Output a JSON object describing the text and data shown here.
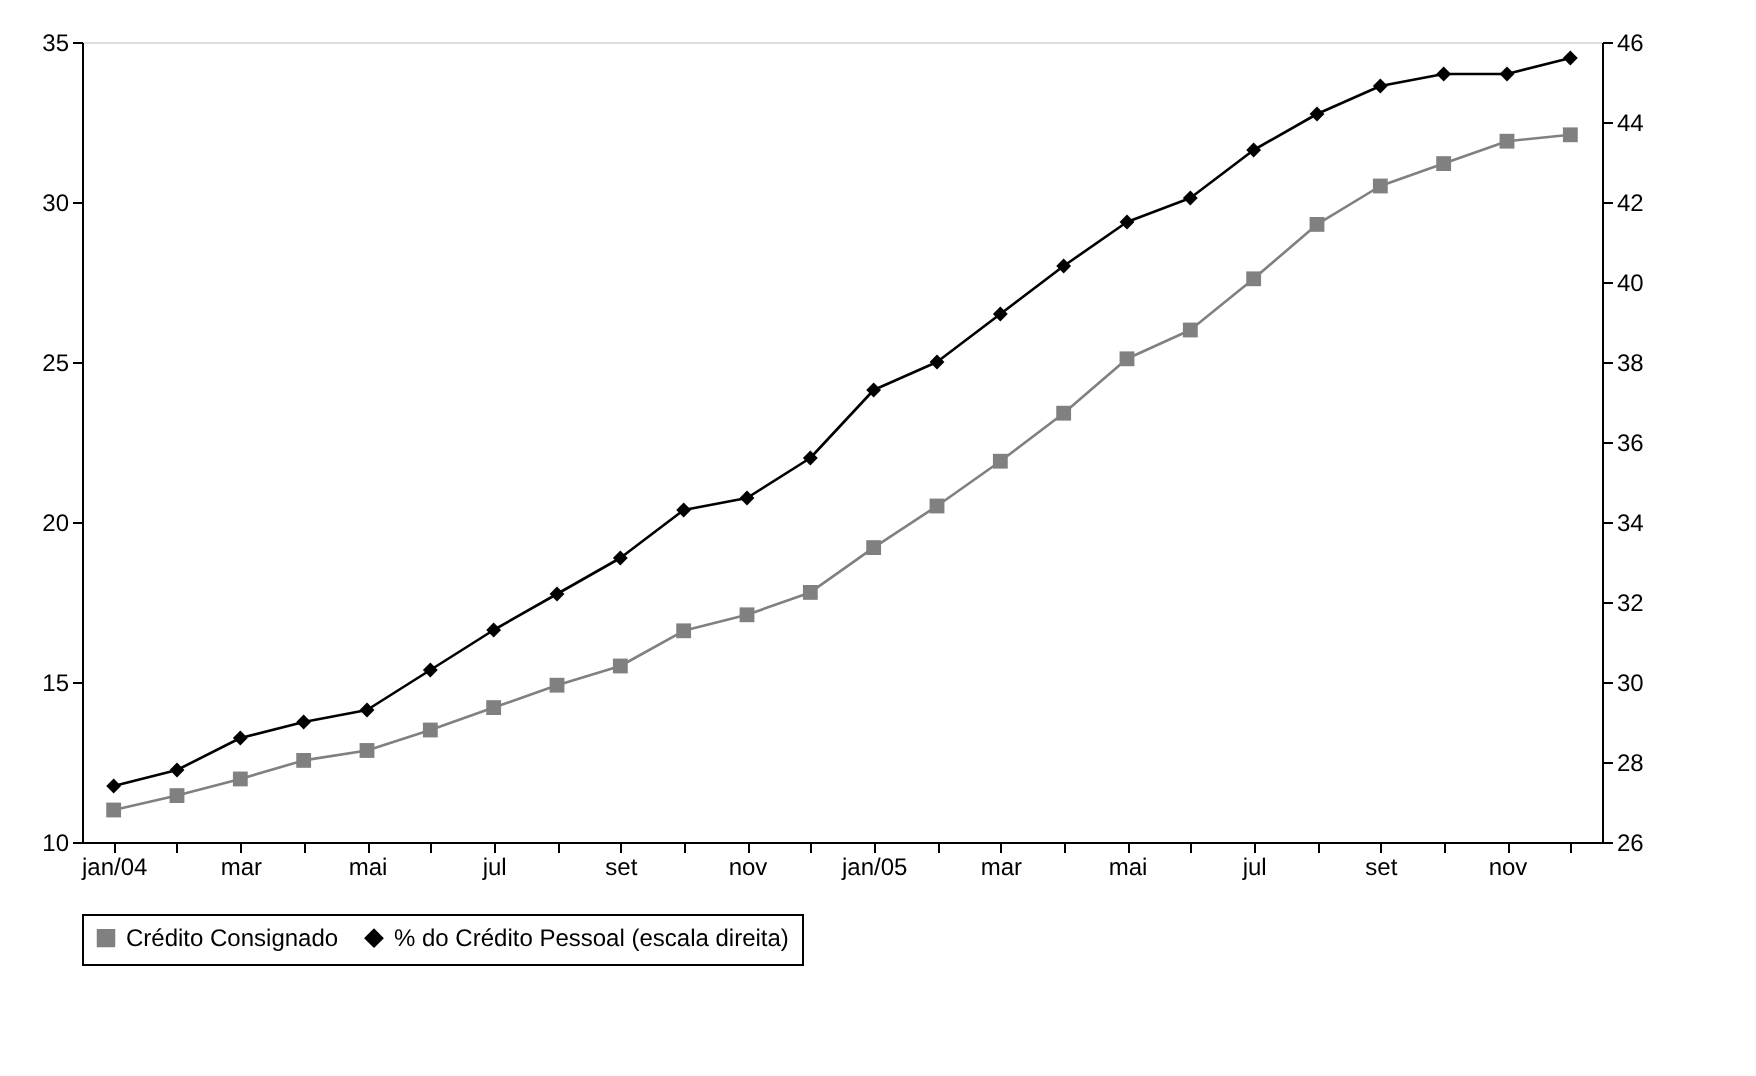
{
  "chart_data": {
    "type": "line",
    "categories": [
      "jan/04",
      null,
      "mar",
      null,
      "mai",
      null,
      "jul",
      null,
      "set",
      null,
      "nov",
      null,
      "jan/05",
      null,
      "mar",
      null,
      "mai",
      null,
      "jul",
      null,
      "set",
      null,
      "nov",
      null
    ],
    "series": [
      {
        "name": "Crédito Consignado",
        "color": "#808080",
        "marker": "square",
        "values": [
          11.0,
          11.45,
          11.97,
          12.55,
          12.86,
          13.5,
          14.2,
          14.9,
          15.5,
          16.6,
          17.1,
          17.8,
          19.2,
          20.5,
          21.9,
          23.4,
          25.1,
          26.0,
          27.6,
          29.3,
          30.5,
          31.2,
          31.9,
          32.1
        ]
      },
      {
        "name": "% do Crédito Pessoal (escala direita)",
        "color": "#000000",
        "marker": "diamond",
        "axis": "y2",
        "values": [
          27.4,
          27.8,
          28.6,
          29.0,
          29.3,
          30.3,
          31.3,
          32.2,
          33.1,
          34.3,
          34.6,
          35.6,
          37.3,
          38.0,
          39.2,
          40.4,
          41.5,
          42.1,
          43.3,
          44.2,
          44.9,
          45.2,
          45.2,
          45.6
        ]
      }
    ],
    "ylim": [
      10,
      35
    ],
    "yticks": [
      10,
      15,
      20,
      25,
      30,
      35
    ],
    "y2lim": [
      26,
      46
    ],
    "y2ticks": [
      26,
      28,
      30,
      32,
      34,
      36,
      38,
      40,
      42,
      44,
      46
    ],
    "grid": false,
    "legend": "bottom",
    "line_style": "solid"
  }
}
